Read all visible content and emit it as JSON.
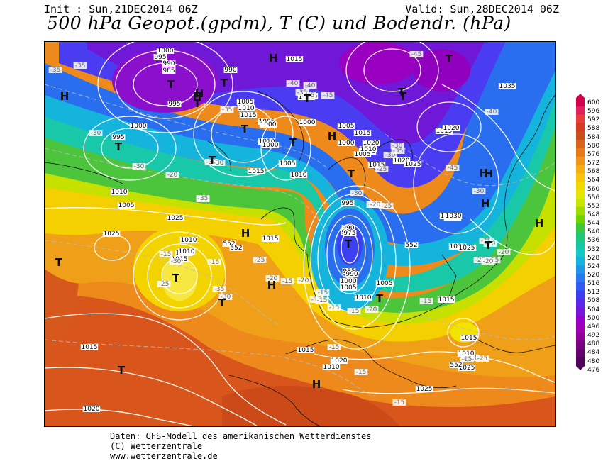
{
  "header": {
    "init": "Init : Sun,21DEC2014 06Z",
    "valid": "Valid: Sun,28DEC2014 06Z",
    "title": "500 hPa Geopot.(gpdm), T (C) und Bodendr. (hPa)"
  },
  "legend": {
    "values": [
      "600",
      "596",
      "592",
      "588",
      "584",
      "580",
      "576",
      "572",
      "568",
      "564",
      "560",
      "556",
      "552",
      "548",
      "544",
      "540",
      "536",
      "532",
      "528",
      "524",
      "520",
      "516",
      "512",
      "508",
      "504",
      "500",
      "496",
      "492",
      "488",
      "484",
      "480",
      "476"
    ],
    "colors": [
      "#d4004c",
      "#e0205a",
      "#ea3c3c",
      "#d23c20",
      "#c85018",
      "#d8641a",
      "#e47a18",
      "#ee9416",
      "#f5ad12",
      "#f8c40c",
      "#f3d800",
      "#e6e600",
      "#c8e600",
      "#9cdc00",
      "#6ed200",
      "#3cc83c",
      "#1ec878",
      "#14c8a0",
      "#14c8c8",
      "#14b4dc",
      "#1e96e6",
      "#2878f0",
      "#325af0",
      "#3c3cf0",
      "#5a28e6",
      "#7a14dc",
      "#9600c8",
      "#a000b4",
      "#8c0096",
      "#780082",
      "#64006e",
      "#50005a"
    ]
  },
  "map": {
    "pressure_labels": [
      "1000",
      "995",
      "990",
      "985",
      "990",
      "1015",
      "995",
      "1000",
      "1005",
      "1010",
      "1015",
      "1005",
      "1000",
      "1010",
      "1015",
      "1035",
      "995",
      "1005",
      "1010",
      "1010",
      "1000",
      "1005",
      "1010",
      "1015",
      "1020",
      "1015",
      "1020",
      "1000",
      "1005",
      "1010",
      "1015",
      "1000",
      "1005",
      "1010",
      "1015",
      "1020",
      "1025",
      "1030",
      "995",
      "990",
      "985",
      "975",
      "985",
      "990",
      "1000",
      "1005",
      "1010",
      "1005",
      "1020",
      "1025",
      "1025",
      "1015",
      "1010",
      "1005",
      "1020",
      "1025",
      "1030",
      "1025",
      "1015",
      "1010",
      "1015",
      "1020",
      "1015",
      "1010",
      "1025",
      "1015",
      "1020",
      "1010",
      "1015",
      "1020",
      "1025",
      "1015",
      "1025"
    ],
    "temp_labels": [
      "-35",
      "-35",
      "-30",
      "-30",
      "-40",
      "-45",
      "-45",
      "-45",
      "-35",
      "-40",
      "-45",
      "-40",
      "-35",
      "-30",
      "-30",
      "-30",
      "-35",
      "-30",
      "-25",
      "-25",
      "-30",
      "-30",
      "-35",
      "-30",
      "-25",
      "-20",
      "-20",
      "-25",
      "-20",
      "-15",
      "-15",
      "-25",
      "-30",
      "-35",
      "-30",
      "-25",
      "-20",
      "-15",
      "-20",
      "-15",
      "-15",
      "-15",
      "-15",
      "-20",
      "-15",
      "-15",
      "-15",
      "-15",
      "-20",
      "-25",
      "-20",
      "-25",
      "-15",
      "-15",
      "-15"
    ],
    "height_labels": [
      "552",
      "552",
      "552",
      "552"
    ],
    "highs": [
      "H",
      "H",
      "H",
      "H",
      "H",
      "H",
      "H",
      "H",
      "H",
      "H",
      "H",
      "H"
    ],
    "lows": [
      "T",
      "T",
      "T",
      "T",
      "T",
      "T",
      "T",
      "T",
      "T",
      "T",
      "T",
      "T",
      "T",
      "T",
      "T",
      "T",
      "T",
      "T",
      "T"
    ]
  },
  "footer": {
    "line1": "Daten: GFS-Modell des amerikanischen Wetterdienstes",
    "line2": "(C) Wetterzentrale",
    "line3": "www.wetterzentrale.de"
  }
}
